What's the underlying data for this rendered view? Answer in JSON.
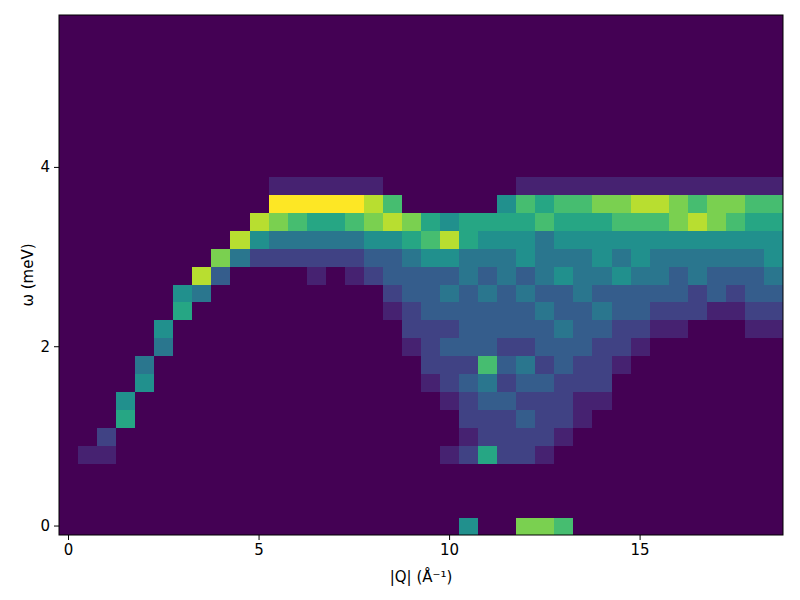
{
  "chart_data": {
    "type": "heatmap",
    "x_label": "|Q| (Å⁻¹)",
    "y_label": "ω (meV)",
    "x": [
      0,
      0.5,
      1,
      1.5,
      2,
      2.5,
      3,
      3.5,
      4,
      4.5,
      5,
      5.5,
      6,
      6.5,
      7,
      7.5,
      8,
      8.5,
      9,
      9.5,
      10,
      10.5,
      11,
      11.5,
      12,
      12.5,
      13,
      13.5,
      14,
      14.5,
      15,
      15.5,
      16,
      16.5,
      17,
      17.5,
      18,
      18.5
    ],
    "y": [
      0,
      0.2,
      0.4,
      0.6,
      0.8,
      1,
      1.2,
      1.4,
      1.6,
      1.8,
      2,
      2.2,
      2.4,
      2.6,
      2.8,
      3,
      3.2,
      3.4,
      3.6,
      3.8,
      4,
      4.2,
      4.4,
      4.6,
      4.8,
      5,
      5.2,
      5.4,
      5.6
    ],
    "values": [
      [
        0,
        0,
        0,
        0,
        0,
        0,
        0,
        0,
        0,
        0,
        0,
        0,
        0,
        0,
        0,
        0,
        0,
        0,
        0,
        0,
        0,
        0,
        0,
        0,
        0,
        0,
        0,
        0,
        0
      ],
      [
        0,
        0,
        0,
        0,
        1,
        0,
        0,
        0,
        0,
        0,
        0,
        0,
        0,
        0,
        0,
        0,
        0,
        0,
        0,
        0,
        0,
        0,
        0,
        0,
        0,
        0,
        0,
        0,
        0
      ],
      [
        0,
        0,
        0,
        0,
        1,
        2,
        0,
        0,
        0,
        0,
        0,
        0,
        0,
        0,
        0,
        0,
        0,
        0,
        0,
        0,
        0,
        0,
        0,
        0,
        0,
        0,
        0,
        0,
        0
      ],
      [
        0,
        0,
        0,
        0,
        0,
        0,
        6,
        5,
        0,
        0,
        0,
        0,
        0,
        0,
        0,
        0,
        0,
        0,
        0,
        0,
        0,
        0,
        0,
        0,
        0,
        0,
        0,
        0,
        0
      ],
      [
        0,
        0,
        0,
        0,
        0,
        0,
        0,
        0,
        5,
        4,
        0,
        0,
        0,
        0,
        0,
        0,
        0,
        0,
        0,
        0,
        0,
        0,
        0,
        0,
        0,
        0,
        0,
        0,
        0
      ],
      [
        0,
        0,
        0,
        0,
        0,
        0,
        0,
        0,
        0,
        0,
        4,
        5,
        0,
        0,
        0,
        0,
        0,
        0,
        0,
        0,
        0,
        0,
        0,
        0,
        0,
        0,
        0,
        0,
        0
      ],
      [
        0,
        0,
        0,
        0,
        0,
        0,
        0,
        0,
        0,
        0,
        0,
        0,
        6,
        5,
        0,
        0,
        0,
        0,
        0,
        0,
        0,
        0,
        0,
        0,
        0,
        0,
        0,
        0,
        0
      ],
      [
        0,
        0,
        0,
        0,
        0,
        0,
        0,
        0,
        0,
        0,
        0,
        0,
        0,
        4,
        9,
        0,
        0,
        0,
        0,
        0,
        0,
        0,
        0,
        0,
        0,
        0,
        0,
        0,
        0
      ],
      [
        0,
        0,
        0,
        0,
        0,
        0,
        0,
        0,
        0,
        0,
        0,
        0,
        0,
        0,
        3,
        8,
        0,
        0,
        0,
        0,
        0,
        0,
        0,
        0,
        0,
        0,
        0,
        0,
        0
      ],
      [
        0,
        0,
        0,
        0,
        0,
        0,
        0,
        0,
        0,
        0,
        0,
        0,
        0,
        0,
        0,
        4,
        9,
        0,
        0,
        0,
        0,
        0,
        0,
        0,
        0,
        0,
        0,
        0,
        0
      ],
      [
        0,
        0,
        0,
        0,
        0,
        0,
        0,
        0,
        0,
        0,
        0,
        0,
        0,
        0,
        0,
        2,
        5,
        9,
        0,
        0,
        0,
        0,
        0,
        0,
        0,
        0,
        0,
        0,
        0
      ],
      [
        0,
        0,
        0,
        0,
        0,
        0,
        0,
        0,
        0,
        0,
        0,
        0,
        0,
        0,
        0,
        2,
        4,
        8,
        10,
        1,
        0,
        0,
        0,
        0,
        0,
        0,
        0,
        0,
        0
      ],
      [
        0,
        0,
        0,
        0,
        0,
        0,
        0,
        0,
        0,
        0,
        0,
        0,
        0,
        0,
        0,
        2,
        4,
        7,
        10,
        1,
        0,
        0,
        0,
        0,
        0,
        0,
        0,
        0,
        0
      ],
      [
        0,
        0,
        0,
        0,
        0,
        0,
        0,
        0,
        0,
        0,
        0,
        0,
        0,
        0,
        1,
        2,
        4,
        6,
        10,
        1,
        0,
        0,
        0,
        0,
        0,
        0,
        0,
        0,
        0
      ],
      [
        0,
        0,
        0,
        0,
        0,
        0,
        0,
        0,
        0,
        0,
        0,
        0,
        0,
        0,
        0,
        2,
        4,
        6,
        10,
        1,
        0,
        0,
        0,
        0,
        0,
        0,
        0,
        0,
        0
      ],
      [
        0,
        0,
        0,
        0,
        0,
        0,
        0,
        0,
        0,
        0,
        0,
        0,
        0,
        0,
        1,
        2,
        4,
        7,
        10,
        1,
        0,
        0,
        0,
        0,
        0,
        0,
        0,
        0,
        0
      ],
      [
        0,
        0,
        0,
        0,
        0,
        0,
        0,
        0,
        0,
        0,
        0,
        0,
        0,
        0,
        2,
        3,
        5,
        8,
        9,
        1,
        0,
        0,
        0,
        0,
        0,
        0,
        0,
        0,
        0
      ],
      [
        0,
        0,
        0,
        0,
        0,
        0,
        0,
        0,
        0,
        0,
        0,
        0,
        1,
        2,
        3,
        3,
        5,
        9,
        7,
        0,
        0,
        0,
        0,
        0,
        0,
        0,
        0,
        0,
        0
      ],
      [
        0,
        0,
        0,
        0,
        0,
        0,
        0,
        0,
        0,
        0,
        1,
        2,
        2,
        3,
        3,
        4,
        6,
        8,
        0,
        0,
        0,
        0,
        0,
        0,
        0,
        0,
        0,
        0,
        0
      ],
      [
        0,
        0,
        0,
        0,
        0,
        0,
        0,
        0,
        1,
        2,
        2,
        2,
        3,
        3,
        3,
        5,
        7,
        6,
        0,
        0,
        0,
        0,
        0,
        0,
        0,
        0,
        0,
        0,
        0
      ],
      [
        0,
        0,
        0,
        0,
        1,
        0,
        0,
        1,
        2,
        2,
        3,
        2,
        3,
        4,
        3,
        5,
        9,
        5,
        0,
        0,
        0,
        0,
        0,
        0,
        0,
        0,
        0,
        0,
        0
      ],
      [
        5,
        0,
        0,
        0,
        2,
        1,
        2,
        2,
        3,
        2,
        3,
        3,
        3,
        3,
        4,
        4,
        6,
        6,
        0,
        0,
        0,
        0,
        0,
        0,
        0,
        0,
        0,
        0,
        0
      ],
      [
        0,
        0,
        0,
        0,
        6,
        2,
        2,
        3,
        4,
        7,
        3,
        3,
        3,
        4,
        3,
        4,
        5,
        6,
        0,
        0,
        0,
        0,
        0,
        0,
        0,
        0,
        0,
        0,
        0
      ],
      [
        0,
        0,
        0,
        0,
        2,
        2,
        2,
        3,
        2,
        3,
        2,
        3,
        3,
        3,
        4,
        4,
        5,
        6,
        5,
        0,
        0,
        0,
        0,
        0,
        0,
        0,
        0,
        0,
        0
      ],
      [
        8,
        0,
        0,
        0,
        2,
        2,
        3,
        2,
        3,
        4,
        2,
        3,
        3,
        4,
        3,
        5,
        5,
        6,
        7,
        1,
        0,
        0,
        0,
        0,
        0,
        0,
        0,
        0,
        0
      ],
      [
        8,
        0,
        0,
        0,
        1,
        2,
        2,
        2,
        3,
        2,
        3,
        3,
        4,
        3,
        4,
        4,
        4,
        7,
        6,
        1,
        0,
        0,
        0,
        0,
        0,
        0,
        0,
        0,
        0
      ],
      [
        7,
        0,
        0,
        0,
        0,
        1,
        2,
        2,
        2,
        3,
        3,
        4,
        3,
        3,
        5,
        4,
        5,
        6,
        7,
        1,
        0,
        0,
        0,
        0,
        0,
        0,
        0,
        0,
        0
      ],
      [
        0,
        0,
        0,
        0,
        0,
        0,
        1,
        1,
        2,
        2,
        3,
        3,
        3,
        4,
        4,
        4,
        5,
        6,
        7,
        1,
        0,
        0,
        0,
        0,
        0,
        0,
        0,
        0,
        0
      ],
      [
        0,
        0,
        0,
        0,
        0,
        0,
        0,
        1,
        2,
        2,
        2,
        3,
        4,
        3,
        4,
        5,
        5,
        6,
        8,
        1,
        0,
        0,
        0,
        0,
        0,
        0,
        0,
        0,
        0
      ],
      [
        0,
        0,
        0,
        0,
        0,
        0,
        0,
        0,
        0,
        1,
        2,
        2,
        3,
        3,
        5,
        4,
        5,
        7,
        8,
        1,
        0,
        0,
        0,
        0,
        0,
        0,
        0,
        0,
        0
      ],
      [
        0,
        0,
        0,
        0,
        0,
        0,
        0,
        0,
        0,
        0,
        1,
        2,
        3,
        3,
        4,
        5,
        5,
        7,
        9,
        1,
        0,
        0,
        0,
        0,
        0,
        0,
        0,
        0,
        0
      ],
      [
        0,
        0,
        0,
        0,
        0,
        0,
        0,
        0,
        0,
        0,
        0,
        1,
        2,
        3,
        4,
        4,
        5,
        7,
        9,
        1,
        0,
        0,
        0,
        0,
        0,
        0,
        0,
        0,
        0
      ],
      [
        0,
        0,
        0,
        0,
        0,
        0,
        0,
        0,
        0,
        0,
        0,
        1,
        2,
        3,
        3,
        4,
        5,
        8,
        8,
        1,
        0,
        0,
        0,
        0,
        0,
        0,
        0,
        0,
        0
      ],
      [
        0,
        0,
        0,
        0,
        0,
        0,
        0,
        0,
        0,
        0,
        0,
        0,
        2,
        2,
        4,
        4,
        5,
        9,
        7,
        1,
        0,
        0,
        0,
        0,
        0,
        0,
        0,
        0,
        0
      ],
      [
        0,
        0,
        0,
        0,
        0,
        0,
        0,
        0,
        0,
        0,
        0,
        0,
        1,
        3,
        3,
        4,
        5,
        8,
        8,
        1,
        0,
        0,
        0,
        0,
        0,
        0,
        0,
        0,
        0
      ],
      [
        0,
        0,
        0,
        0,
        0,
        0,
        0,
        0,
        0,
        0,
        0,
        0,
        1,
        2,
        3,
        4,
        5,
        7,
        8,
        1,
        0,
        0,
        0,
        0,
        0,
        0,
        0,
        0,
        0
      ],
      [
        0,
        0,
        0,
        0,
        0,
        0,
        0,
        0,
        0,
        0,
        0,
        1,
        2,
        3,
        3,
        4,
        5,
        6,
        7,
        1,
        0,
        0,
        0,
        0,
        0,
        0,
        0,
        0,
        0
      ],
      [
        0,
        0,
        0,
        0,
        0,
        0,
        0,
        0,
        0,
        0,
        0,
        1,
        2,
        3,
        4,
        5,
        5,
        6,
        7,
        1,
        0,
        0,
        0,
        0,
        0,
        0,
        0,
        0,
        0
      ]
    ],
    "color_range": [
      0,
      10
    ],
    "xlim": [
      -0.25,
      18.75
    ],
    "ylim": [
      -0.1,
      5.7
    ],
    "xticks": [
      0,
      5,
      10,
      15
    ],
    "yticks": [
      0,
      2,
      4
    ]
  }
}
